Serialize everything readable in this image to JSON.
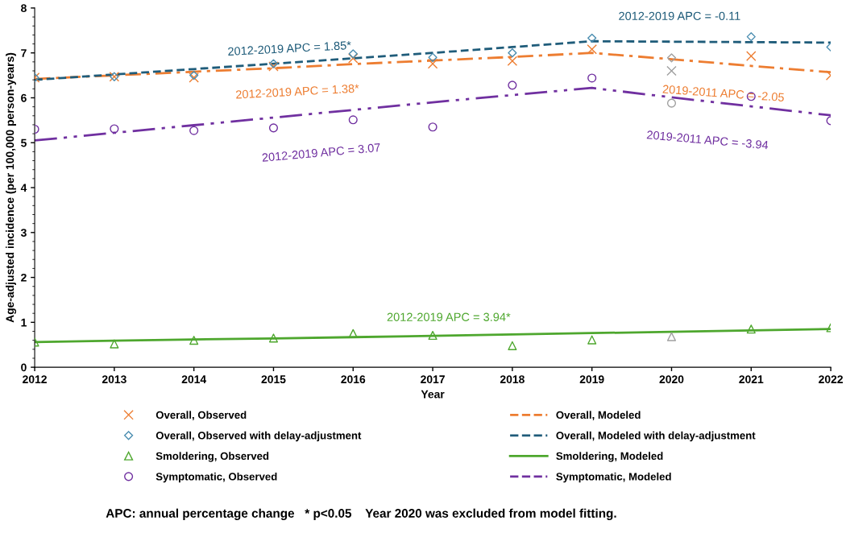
{
  "chart_data": {
    "type": "line",
    "xlabel": "Year",
    "ylabel": "Age-adjusted incidence (per 100,000 person-years)",
    "x": [
      2012,
      2013,
      2014,
      2015,
      2016,
      2017,
      2018,
      2019,
      2020,
      2021,
      2022
    ],
    "xlim": [
      2012,
      2022
    ],
    "xticks": [
      2012,
      2013,
      2014,
      2015,
      2016,
      2017,
      2018,
      2019,
      2020,
      2021,
      2022
    ],
    "ylim": [
      0,
      8
    ],
    "yticks": [
      0,
      1,
      2,
      3,
      4,
      5,
      6,
      7,
      8
    ],
    "grid": false,
    "legend": "bottom",
    "series": [
      {
        "name": "Overall, Observed",
        "type": "scatter",
        "marker": "cross",
        "color": "#ed7d31",
        "colors": [
          "#ed7d31",
          "#ed7d31",
          "#ed7d31",
          "#ed7d31",
          "#ed7d31",
          "#ed7d31",
          "#ed7d31",
          "#ed7d31",
          "#a0a0a0",
          "#ed7d31",
          "#ed7d31"
        ],
        "values": [
          6.45,
          6.47,
          6.45,
          6.7,
          6.88,
          6.76,
          6.82,
          7.08,
          6.6,
          6.93,
          6.5
        ]
      },
      {
        "name": "Overall, Modeled",
        "line_style": "dashdot",
        "color": "#ed7d31",
        "values": [
          6.42,
          6.5,
          6.58,
          6.66,
          6.75,
          6.83,
          6.91,
          7.0,
          6.86,
          6.71,
          6.57
        ]
      },
      {
        "name": "Overall, Observed with delay-adjustment",
        "type": "scatter",
        "marker": "diamond",
        "color": "#4a8db0",
        "colors": [
          "#4a8db0",
          "#4a8db0",
          "#4a8db0",
          "#4a8db0",
          "#4a8db0",
          "#4a8db0",
          "#4a8db0",
          "#4a8db0",
          "#a0a0a0",
          "#4a8db0",
          "#4a8db0"
        ],
        "values": [
          6.45,
          6.47,
          6.5,
          6.76,
          6.98,
          6.9,
          7.0,
          7.33,
          6.89,
          7.36,
          7.13
        ]
      },
      {
        "name": "Overall, Modeled with delay-adjustment",
        "line_style": "dashed",
        "color": "#1f5c7a",
        "values": [
          6.4,
          6.52,
          6.64,
          6.76,
          6.88,
          7.0,
          7.13,
          7.26,
          7.25,
          7.24,
          7.23
        ]
      },
      {
        "name": "Smoldering, Observed",
        "type": "scatter",
        "marker": "triangle",
        "color": "#4ea72e",
        "colors": [
          "#4ea72e",
          "#4ea72e",
          "#4ea72e",
          "#4ea72e",
          "#4ea72e",
          "#4ea72e",
          "#4ea72e",
          "#4ea72e",
          "#a0a0a0",
          "#4ea72e",
          "#4ea72e"
        ],
        "values": [
          0.56,
          0.52,
          0.6,
          0.65,
          0.75,
          0.71,
          0.48,
          0.61,
          0.68,
          0.85,
          0.88
        ]
      },
      {
        "name": "Smoldering, Modeled",
        "line_style": "solid",
        "color": "#4ea72e",
        "values": [
          0.56,
          0.59,
          0.62,
          0.64,
          0.67,
          0.7,
          0.73,
          0.76,
          0.79,
          0.82,
          0.85
        ]
      },
      {
        "name": "Symptomatic, Observed",
        "type": "scatter",
        "marker": "circle",
        "color": "#7030a0",
        "colors": [
          "#7030a0",
          "#7030a0",
          "#7030a0",
          "#7030a0",
          "#7030a0",
          "#7030a0",
          "#7030a0",
          "#7030a0",
          "#a0a0a0",
          "#7030a0",
          "#7030a0"
        ],
        "values": [
          5.3,
          5.31,
          5.27,
          5.33,
          5.51,
          5.35,
          6.28,
          6.44,
          5.88,
          6.03,
          5.49
        ]
      },
      {
        "name": "Symptomatic, Modeled",
        "line_style": "dashdotdot",
        "color": "#7030a0",
        "values": [
          5.05,
          5.22,
          5.39,
          5.56,
          5.73,
          5.9,
          6.06,
          6.22,
          6.01,
          5.81,
          5.61
        ]
      }
    ],
    "annotations": [
      "2012-2019 APC = 1.85*",
      "2012-2019 APC = 1.38*",
      "2012-2019 APC = 3.07",
      "2012-2019 APC = -0.11",
      "2019-2011 APC = -2.05",
      "2019-2011 APC = -3.94",
      "2012-2019 APC = 3.94*",
      "APC: annual percentage change   * p<0.05    Year 2020 was excluded from model fitting."
    ]
  }
}
